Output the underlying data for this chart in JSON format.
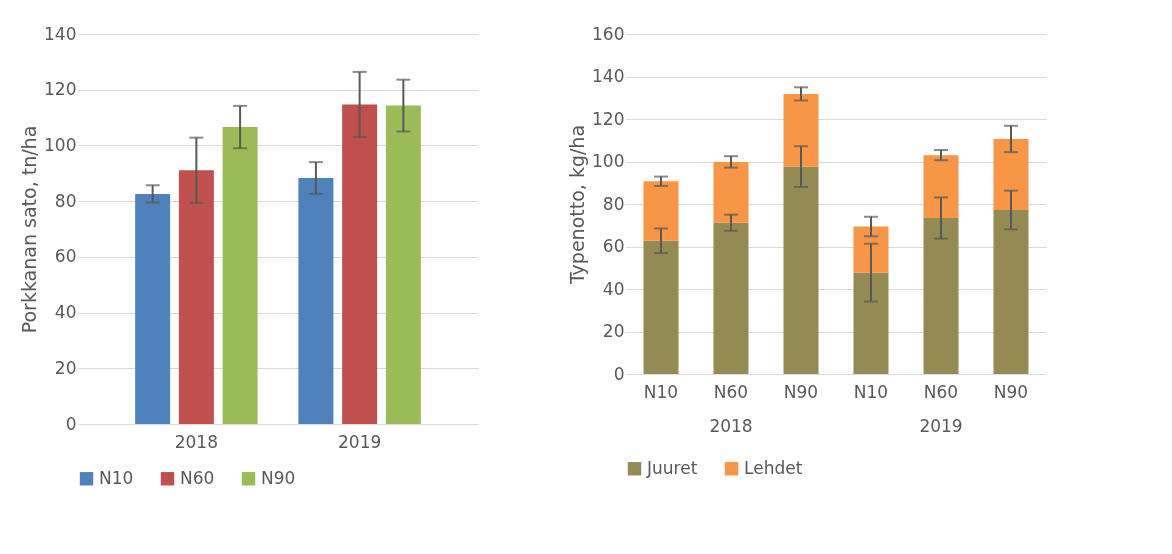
{
  "chart_data": [
    {
      "type": "bar",
      "categories": [
        "2018",
        "2019"
      ],
      "ylabel": "Porkkanan sato, tn/ha",
      "ylim": [
        0,
        140
      ],
      "yticks": [
        0,
        20,
        40,
        60,
        80,
        100,
        120,
        140
      ],
      "grid": "y",
      "legend": "bottom",
      "series": [
        {
          "name": "N10",
          "color": "#4f81bd",
          "values": [
            82.6,
            88.3
          ],
          "errors": [
            3.1,
            5.7
          ]
        },
        {
          "name": "N60",
          "color": "#c0504d",
          "values": [
            91.1,
            114.7
          ],
          "errors": [
            11.7,
            11.7
          ]
        },
        {
          "name": "N90",
          "color": "#9bbb59",
          "values": [
            106.6,
            114.3
          ],
          "errors": [
            7.6,
            9.3
          ]
        }
      ]
    },
    {
      "type": "bar",
      "stacked": true,
      "categories": [
        "N10",
        "N60",
        "N90",
        "N10",
        "N60",
        "N90"
      ],
      "annotations": [
        "2018",
        "2019"
      ],
      "ylabel": "Typenotto, kg/ha",
      "ylim": [
        0,
        160
      ],
      "yticks": [
        0,
        20,
        40,
        60,
        80,
        100,
        120,
        140,
        160
      ],
      "grid": "y",
      "legend": "bottom",
      "series": [
        {
          "name": "Juuret",
          "color": "#948a54",
          "values": [
            62.7,
            71.2,
            97.6,
            47.7,
            73.4,
            77.2
          ],
          "errors": [
            5.8,
            3.8,
            9.6,
            13.6,
            9.7,
            9.1
          ]
        },
        {
          "name": "Lehdet",
          "color": "#f79646",
          "values": [
            28.0,
            28.6,
            34.2,
            21.7,
            29.6,
            33.4
          ],
          "errors": [
            2.2,
            2.7,
            3.1,
            4.6,
            2.4,
            6.2
          ]
        }
      ]
    }
  ]
}
